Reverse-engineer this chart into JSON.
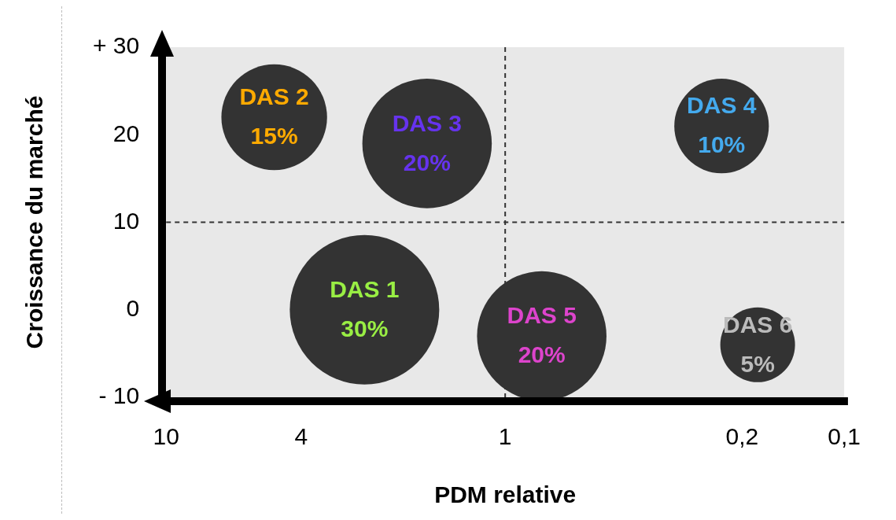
{
  "chart_data": {
    "type": "bubble",
    "xlabel": "PDM relative",
    "ylabel": "Croissance du marché",
    "log": "x",
    "grid": false,
    "legend": false,
    "xlim": [
      10,
      0.1
    ],
    "xticks": [
      10,
      4,
      1,
      {
        "value": 0.2,
        "label": "0,2"
      },
      {
        "value": 0.1,
        "label": "0,1"
      }
    ],
    "ylim": [
      -10,
      30
    ],
    "yticks": [
      {
        "value": -10,
        "label": "- 10"
      },
      0,
      10,
      20,
      {
        "value": 30,
        "label": "+ 30"
      }
    ],
    "ref_lines": [
      {
        "axis": "x",
        "value": 1,
        "line_style": "dashed",
        "color": "#333333"
      },
      {
        "axis": "y",
        "value": 10,
        "line_style": "dashed",
        "color": "#333333"
      }
    ],
    "series": [
      {
        "name": "DAS 1",
        "color": "#333333",
        "x": [
          2.6
        ],
        "values": [
          0
        ],
        "sizes": [
          1
        ]
      },
      {
        "name": "DAS 2",
        "color": "#333333",
        "x": [
          4.8
        ],
        "values": [
          22
        ],
        "sizes": [
          0.5
        ]
      },
      {
        "name": "DAS 3",
        "color": "#333333",
        "x": [
          1.7
        ],
        "values": [
          19
        ],
        "sizes": [
          0.75
        ]
      },
      {
        "name": "DAS 4",
        "color": "#333333",
        "x": [
          0.23
        ],
        "values": [
          21
        ],
        "sizes": [
          0.4
        ]
      },
      {
        "name": "DAS 5",
        "color": "#333333",
        "x": [
          0.78
        ],
        "values": [
          -3
        ],
        "sizes": [
          0.75
        ]
      },
      {
        "name": "DAS 6",
        "color": "#333333",
        "x": [
          0.18
        ],
        "values": [
          -4
        ],
        "sizes": [
          0.25
        ]
      }
    ],
    "annotations": [
      {
        "text": "30%",
        "x": 2.6,
        "y": 0
      },
      {
        "text": "15%",
        "x": 4.8,
        "y": 22
      },
      {
        "text": "20%",
        "x": 1.7,
        "y": 19
      },
      {
        "text": "10%",
        "x": 0.23,
        "y": 21
      },
      {
        "text": "20%",
        "x": 0.78,
        "y": -3
      },
      {
        "text": "5%",
        "x": 0.18,
        "y": -4
      }
    ]
  }
}
